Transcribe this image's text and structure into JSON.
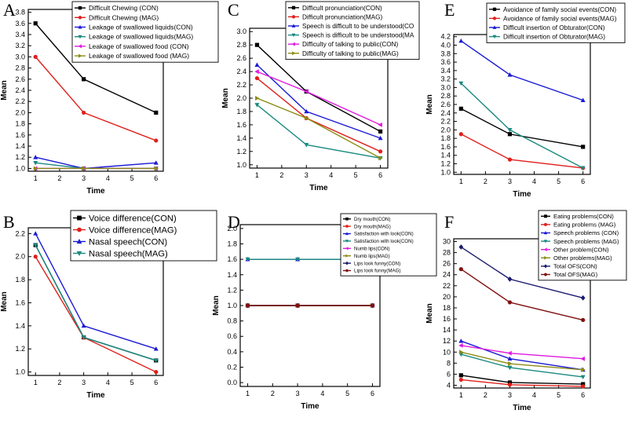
{
  "figure": {
    "colors": {
      "black": "#000000",
      "red": "#e0201b",
      "blue": "#1a1ad6",
      "teal": "#1a8a80",
      "magenta": "#e01ae0",
      "olive": "#8c8c14",
      "navy": "#1a1a6e",
      "maroon": "#801010"
    }
  },
  "chart_data": [
    {
      "panel": "A",
      "type": "line",
      "xlabel": "Time",
      "ylabel": "Mean",
      "x": [
        1,
        3,
        6
      ],
      "xticks": [
        1,
        2,
        3,
        4,
        5,
        6
      ],
      "ylim": [
        0.95,
        3.85
      ],
      "yticks": [
        "1.0",
        "1.2",
        "1.4",
        "1.6",
        "1.8",
        "2.0",
        "2.2",
        "2.4",
        "2.6",
        "2.8",
        "3.0",
        "3.2",
        "3.4",
        "3.6",
        "3.8"
      ],
      "legend_position": "top-right",
      "series": [
        {
          "name": "Difficult Chewing (CON)",
          "color": "black",
          "marker": "square",
          "values": [
            3.6,
            2.6,
            2.0
          ]
        },
        {
          "name": "Difficult Chewing (MAG)",
          "color": "red",
          "marker": "circle",
          "values": [
            3.0,
            2.0,
            1.5
          ]
        },
        {
          "name": "Leakage of swallowed liquids(CON)",
          "color": "blue",
          "marker": "triangle-up",
          "values": [
            1.2,
            1.0,
            1.1
          ]
        },
        {
          "name": "Leakage of swallowed liquids(MAG)",
          "color": "teal",
          "marker": "triangle-down",
          "values": [
            1.1,
            1.0,
            1.0
          ]
        },
        {
          "name": "Leakage of swallowed food (CON)",
          "color": "magenta",
          "marker": "triangle-left",
          "values": [
            1.0,
            1.0,
            1.0
          ]
        },
        {
          "name": "Leakage of swallowed food (MAG)",
          "color": "olive",
          "marker": "triangle-right",
          "values": [
            1.0,
            1.0,
            1.0
          ]
        }
      ]
    },
    {
      "panel": "B",
      "type": "line",
      "xlabel": "Time",
      "ylabel": "Mean",
      "x": [
        1,
        3,
        6
      ],
      "xticks": [
        1,
        2,
        3,
        4,
        5,
        6
      ],
      "ylim": [
        0.97,
        2.25
      ],
      "yticks": [
        "1.0",
        "1.2",
        "1.4",
        "1.6",
        "1.8",
        "2.0",
        "2.2"
      ],
      "legend_position": "top-right",
      "series": [
        {
          "name": "Voice difference(CON)",
          "color": "black",
          "marker": "square",
          "values": [
            2.1,
            1.3,
            1.1
          ]
        },
        {
          "name": "Voice difference(MAG)",
          "color": "red",
          "marker": "circle",
          "values": [
            2.0,
            1.3,
            1.0
          ]
        },
        {
          "name": "Nasal speech(CON)",
          "color": "blue",
          "marker": "triangle-up",
          "values": [
            2.2,
            1.4,
            1.2
          ]
        },
        {
          "name": "Nasal speech(MAG)",
          "color": "teal",
          "marker": "triangle-down",
          "values": [
            2.1,
            1.3,
            1.1
          ]
        }
      ]
    },
    {
      "panel": "C",
      "type": "line",
      "xlabel": "Time",
      "ylabel": "Mean",
      "x": [
        1,
        3,
        6
      ],
      "xticks": [
        1,
        2,
        3,
        4,
        5,
        6
      ],
      "ylim": [
        0.95,
        3.05
      ],
      "yticks": [
        "1.0",
        "1.2",
        "1.4",
        "1.6",
        "1.8",
        "2.0",
        "2.2",
        "2.4",
        "2.6",
        "2.8",
        "3.0"
      ],
      "legend_position": "top-right",
      "series": [
        {
          "name": "Difficult pronunciation(CON)",
          "color": "black",
          "marker": "square",
          "values": [
            2.8,
            2.1,
            1.5
          ]
        },
        {
          "name": "Difficult pronunciation(MAG)",
          "color": "red",
          "marker": "circle",
          "values": [
            2.3,
            1.7,
            1.2
          ]
        },
        {
          "name": "Speech is difficult to be understood(CO",
          "color": "blue",
          "marker": "triangle-up",
          "values": [
            2.5,
            1.8,
            1.4
          ]
        },
        {
          "name": "Speech is difficult to be understood(MA",
          "color": "teal",
          "marker": "triangle-down",
          "values": [
            1.9,
            1.3,
            1.1
          ]
        },
        {
          "name": "Difficulty of talking to public(CON)",
          "color": "magenta",
          "marker": "triangle-left",
          "values": [
            2.4,
            2.1,
            1.6
          ]
        },
        {
          "name": "Difficulty of talking to public(MAG)",
          "color": "olive",
          "marker": "triangle-right",
          "values": [
            2.0,
            1.7,
            1.1
          ]
        }
      ]
    },
    {
      "panel": "D",
      "type": "line",
      "xlabel": "Time",
      "ylabel": "Mean",
      "x": [
        1,
        3,
        6
      ],
      "xticks": [
        1,
        2,
        3,
        4,
        5,
        6
      ],
      "ylim": [
        -0.05,
        2.05
      ],
      "yticks": [
        "0.0",
        "0.2",
        "0.4",
        "0.6",
        "0.8",
        "1.0",
        "1.2",
        "1.4",
        "1.6",
        "1.8",
        "2.0"
      ],
      "legend_position": "top-right",
      "series": [
        {
          "name": "Dry mouth(CON)",
          "color": "black",
          "marker": "square",
          "values": [
            1.0,
            1.0,
            1.0
          ]
        },
        {
          "name": "Dry mouth(MAG)",
          "color": "red",
          "marker": "circle",
          "values": [
            1.0,
            1.0,
            1.0
          ]
        },
        {
          "name": "Satisfaction with look(CON)",
          "color": "blue",
          "marker": "triangle-up",
          "values": [
            1.6,
            1.6,
            1.6
          ]
        },
        {
          "name": "Satisfaction with look(CON)",
          "color": "teal",
          "marker": "triangle-down",
          "values": [
            1.6,
            1.6,
            1.6
          ]
        },
        {
          "name": "Numb lips(CON)",
          "color": "magenta",
          "marker": "triangle-left",
          "values": [
            1.0,
            1.0,
            1.0
          ]
        },
        {
          "name": "Numb lips(MAG)",
          "color": "olive",
          "marker": "triangle-right",
          "values": [
            1.0,
            1.0,
            1.0
          ]
        },
        {
          "name": "Lips look funny(CON)",
          "color": "navy",
          "marker": "diamond",
          "values": [
            1.0,
            1.0,
            1.0
          ]
        },
        {
          "name": "Lips look funny(MAG)",
          "color": "maroon",
          "marker": "hexagon",
          "values": [
            1.0,
            1.0,
            1.0
          ]
        }
      ]
    },
    {
      "panel": "E",
      "type": "line",
      "xlabel": "Time",
      "ylabel": "Mean",
      "x": [
        1,
        3,
        6
      ],
      "xticks": [
        1,
        2,
        3,
        4,
        5,
        6
      ],
      "ylim": [
        0.95,
        4.25
      ],
      "yticks": [
        "1.0",
        "1.2",
        "1.4",
        "1.6",
        "1.8",
        "2.0",
        "2.2",
        "2.4",
        "2.6",
        "2.8",
        "3.0",
        "3.2",
        "3.4",
        "3.6",
        "3.8",
        "4.0",
        "4.2"
      ],
      "legend_position": "top-right",
      "series": [
        {
          "name": "Avoidance of family social events(CON)",
          "color": "black",
          "marker": "square",
          "values": [
            2.5,
            1.9,
            1.6
          ]
        },
        {
          "name": "Avoidance of family social events(MAG)",
          "color": "red",
          "marker": "circle",
          "values": [
            1.9,
            1.3,
            1.1
          ]
        },
        {
          "name": "Difficult insertion of Obturator(CON)",
          "color": "blue",
          "marker": "triangle-up",
          "values": [
            4.1,
            3.3,
            2.7
          ]
        },
        {
          "name": "Difficult insertion of Obturator(MAG)",
          "color": "teal",
          "marker": "triangle-down",
          "values": [
            3.1,
            2.0,
            1.1
          ]
        }
      ]
    },
    {
      "panel": "F",
      "type": "line",
      "xlabel": "Time",
      "ylabel": "Mean",
      "x": [
        1,
        3,
        6
      ],
      "xticks": [
        1,
        2,
        3,
        4,
        5,
        6
      ],
      "ylim": [
        3.5,
        30.5
      ],
      "yticks": [
        "4",
        "6",
        "8",
        "10",
        "12",
        "14",
        "16",
        "18",
        "20",
        "22",
        "24",
        "26",
        "28",
        "30"
      ],
      "legend_position": "top-right",
      "series": [
        {
          "name": "Eating  problems(CON)",
          "color": "black",
          "marker": "square",
          "values": [
            5.8,
            4.5,
            4.2
          ]
        },
        {
          "name": "Eating  problems (MAG)",
          "color": "red",
          "marker": "circle",
          "values": [
            5.0,
            4.1,
            3.8
          ]
        },
        {
          "name": "Speech problems (CON)",
          "color": "blue",
          "marker": "triangle-up",
          "values": [
            12.0,
            8.8,
            6.8
          ]
        },
        {
          "name": "Speech problems (MAG)",
          "color": "teal",
          "marker": "triangle-down",
          "values": [
            9.6,
            7.2,
            5.5
          ]
        },
        {
          "name": "Other problem(CON)",
          "color": "magenta",
          "marker": "triangle-left",
          "values": [
            11.2,
            9.8,
            8.8
          ]
        },
        {
          "name": "Other problems(MAG)",
          "color": "olive",
          "marker": "triangle-right",
          "values": [
            10.0,
            7.9,
            6.8
          ]
        },
        {
          "name": "Total OFS(CON)",
          "color": "navy",
          "marker": "diamond",
          "values": [
            29.0,
            23.2,
            19.8
          ]
        },
        {
          "name": "Total OFS(MAG)",
          "color": "maroon",
          "marker": "hexagon",
          "values": [
            25.0,
            19.0,
            15.8
          ]
        }
      ]
    }
  ]
}
